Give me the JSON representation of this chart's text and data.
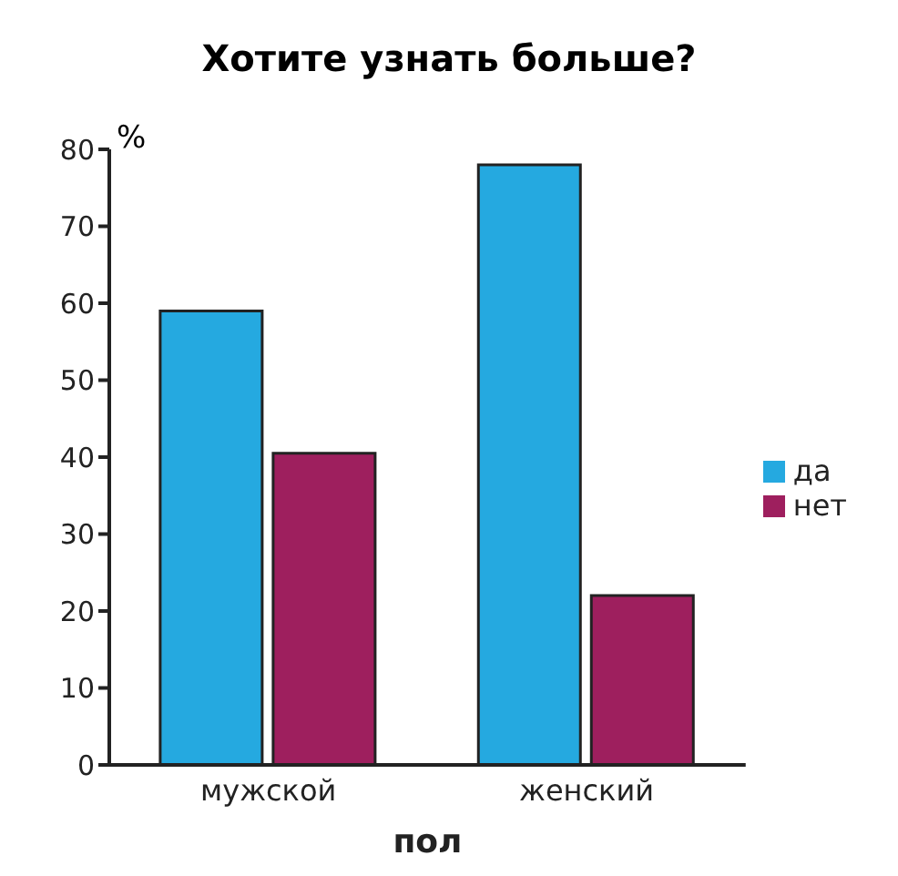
{
  "chart_data": {
    "type": "bar",
    "title": "Хотите узнать больше?",
    "xlabel": "пол",
    "ylabel": "%",
    "categories": [
      "мужской",
      "женский"
    ],
    "series": [
      {
        "name": "да",
        "color": "#25a9e0",
        "values": [
          59,
          78
        ]
      },
      {
        "name": "нет",
        "color": "#9e1f5e",
        "values": [
          40.5,
          22
        ]
      }
    ],
    "ylim": [
      0,
      80
    ],
    "yticks": [
      0,
      10,
      20,
      30,
      40,
      50,
      60,
      70,
      80
    ],
    "grid": false,
    "legend": "right"
  }
}
